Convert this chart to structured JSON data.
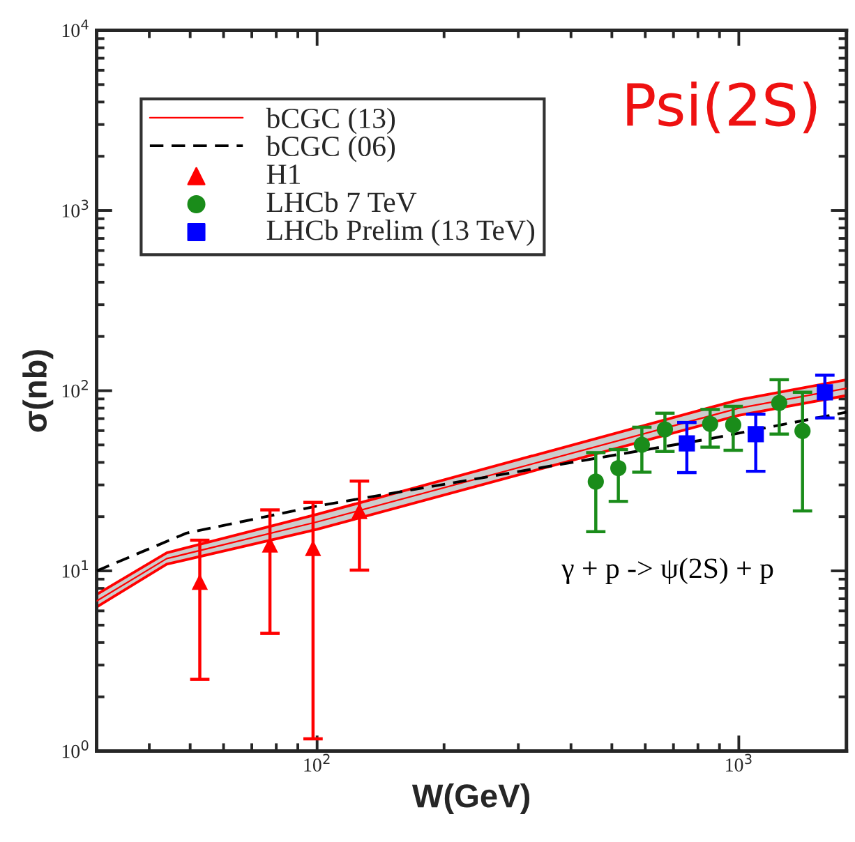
{
  "chart_data": {
    "type": "scatter",
    "xlabel": "W(GeV)",
    "ylabel": "σ(nb)",
    "log": "xy",
    "xlim": [
      30,
      1800
    ],
    "ylim": [
      1,
      10000
    ],
    "xticks": [
      {
        "value": 100,
        "label": "10$^{2}$"
      },
      {
        "value": 1000,
        "label": "10$^{3}$"
      }
    ],
    "yticks": [
      {
        "value": 1,
        "label": "10$^{0}$"
      },
      {
        "value": 10,
        "label": "10$^{1}$"
      },
      {
        "value": 100,
        "label": "10$^{2}$"
      },
      {
        "value": 1000,
        "label": "10$^{3}$"
      },
      {
        "value": 10000,
        "label": "10$^{4}$"
      }
    ],
    "legend": "top left",
    "grid": false,
    "series": [
      {
        "name": "bCGC (13)",
        "type": "line",
        "line_style": "solid",
        "marker": "none",
        "color": "#ff0000",
        "x": [
          30,
          44,
          100,
          1000,
          1800
        ],
        "values": [
          6.8,
          11.7,
          18.7,
          80,
          103
        ],
        "lower": [
          6.3,
          10.9,
          17.0,
          73,
          94
        ],
        "upper": [
          7.4,
          12.6,
          20.6,
          89,
          115
        ]
      },
      {
        "name": "bCGC (06)",
        "type": "line",
        "line_style": "dashed",
        "marker": "none",
        "color": "#000000",
        "x": [
          30,
          49,
          100,
          850,
          1800
        ],
        "values": [
          10,
          16.2,
          22.9,
          54,
          76
        ]
      },
      {
        "name": "H1",
        "marker": "triangle",
        "color": "#ff0000",
        "x": [
          52.7,
          77.3,
          97.8,
          126
        ],
        "values": [
          8.7,
          14.0,
          13.4,
          21.5
        ],
        "errors": [
          [
            2.5,
            14.8
          ],
          [
            4.5,
            21.8
          ],
          [
            1.17,
            24
          ],
          [
            10.1,
            31.5
          ]
        ]
      },
      {
        "name": "LHCb 7 TeV",
        "marker": "circle",
        "color": "#1a8c1a",
        "x": [
          458,
          518,
          589,
          668,
          855,
          970,
          1247,
          1416
        ],
        "values": [
          31.3,
          37.2,
          50.1,
          61.0,
          65.5,
          64.6,
          85.5,
          59.8
        ],
        "errors": [
          [
            16.5,
            45.3
          ],
          [
            24.3,
            47.1
          ],
          [
            35.3,
            62.7
          ],
          [
            46,
            75
          ],
          [
            48.6,
            78.7
          ],
          [
            46.7,
            81.9
          ],
          [
            57.4,
            115
          ],
          [
            21.5,
            98
          ]
        ]
      },
      {
        "name": "LHCb Prelim (13 TeV)",
        "marker": "square",
        "color": "#0000ff",
        "x": [
          753,
          1097,
          1600
        ],
        "values": [
          51,
          57.4,
          98
        ],
        "errors": [
          [
            35.1,
            66.6
          ],
          [
            35.7,
            74.1
          ],
          [
            70.6,
            122
          ]
        ]
      }
    ],
    "annotations": [
      "γ + p -> ψ(2S) + p",
      "Psi(2S)"
    ]
  }
}
